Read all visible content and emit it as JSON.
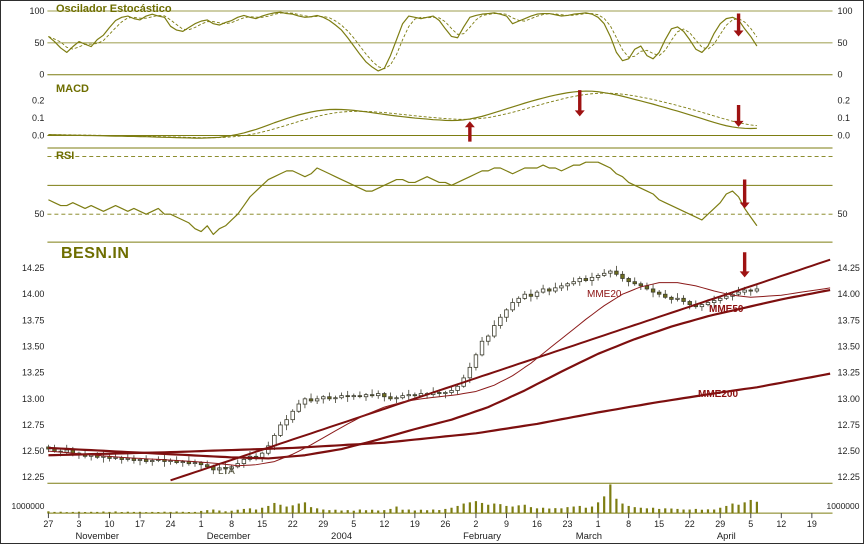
{
  "colors": {
    "olive": "#7d7d12",
    "olive_text": "#6e6e00",
    "dark_red": "#7d0f0f",
    "mme20_red": "#8b1a1a",
    "arrow_red": "#9e1212",
    "candle_up_fill": "#ffffff",
    "candle_down_fill": "#6e6e1e",
    "candle_stroke": "#3d3d2e",
    "volume": "#7d7d12",
    "axis_text": "#222222"
  },
  "chart_data": {
    "type": "candlestick",
    "title": "BESN.IN",
    "panels": {
      "stochastic": {
        "title": "Oscilador Estocástico",
        "ylim": [
          0,
          100
        ],
        "ytick_labels": [
          "100",
          "50",
          "0"
        ],
        "ytick_values": [
          100,
          50,
          0
        ],
        "ref_lines": [
          100,
          50,
          0
        ],
        "k": [
          60,
          52,
          42,
          35,
          44,
          52,
          48,
          44,
          55,
          62,
          74,
          85,
          90,
          92,
          88,
          86,
          92,
          95,
          92,
          90,
          76,
          70,
          68,
          74,
          80,
          84,
          86,
          80,
          78,
          82,
          85,
          90,
          93,
          90,
          88,
          92,
          95,
          97,
          98,
          96,
          95,
          92,
          90,
          91,
          93,
          90,
          85,
          78,
          70,
          58,
          45,
          32,
          20,
          12,
          6,
          10,
          30,
          55,
          80,
          92,
          90,
          88,
          90,
          92,
          85,
          72,
          60,
          58,
          75,
          90,
          93,
          95,
          96,
          97,
          95,
          92,
          80,
          84,
          88,
          92,
          95,
          96,
          96,
          94,
          92,
          93,
          95,
          96,
          97,
          95,
          90,
          80,
          60,
          35,
          22,
          25,
          40,
          45,
          30,
          25,
          35,
          55,
          72,
          75,
          68,
          55,
          40,
          35,
          45,
          65,
          80,
          88,
          90,
          86,
          72,
          60,
          45
        ]
      },
      "macd": {
        "title": "MACD",
        "ylim": [
          -0.06,
          0.33
        ],
        "ytick_labels": [
          "0.2",
          "0.1",
          "0.0"
        ],
        "ytick_values": [
          0.2,
          0.1,
          0.0
        ],
        "ref_lines": [
          0.0
        ],
        "values": [
          0.005,
          0.004,
          0.003,
          0.002,
          0.002,
          0.001,
          0.0,
          0.0,
          -0.001,
          -0.002,
          -0.003,
          -0.004,
          -0.004,
          -0.005,
          -0.005,
          -0.006,
          -0.007,
          -0.008,
          -0.009,
          -0.01,
          -0.011,
          -0.012,
          -0.013,
          -0.014,
          -0.015,
          -0.015,
          -0.014,
          -0.012,
          -0.01,
          -0.005,
          0.0,
          0.007,
          0.015,
          0.025,
          0.035,
          0.047,
          0.06,
          0.073,
          0.085,
          0.097,
          0.108,
          0.118,
          0.127,
          0.135,
          0.141,
          0.146,
          0.149,
          0.15,
          0.149,
          0.147,
          0.144,
          0.14,
          0.136,
          0.131,
          0.126,
          0.121,
          0.116,
          0.112,
          0.108,
          0.104,
          0.1,
          0.097,
          0.094,
          0.091,
          0.089,
          0.087,
          0.086,
          0.087,
          0.09,
          0.095,
          0.102,
          0.11,
          0.12,
          0.131,
          0.142,
          0.153,
          0.164,
          0.175,
          0.186,
          0.196,
          0.206,
          0.215,
          0.224,
          0.232,
          0.239,
          0.245,
          0.25,
          0.253,
          0.255,
          0.254,
          0.251,
          0.246,
          0.24,
          0.233,
          0.225,
          0.216,
          0.207,
          0.198,
          0.189,
          0.18,
          0.17,
          0.16,
          0.15,
          0.14,
          0.13,
          0.119,
          0.108,
          0.097,
          0.086,
          0.075,
          0.065,
          0.056,
          0.049,
          0.044,
          0.041,
          0.04,
          0.041
        ]
      },
      "rsi": {
        "title": "RSI",
        "ytick_labels": [
          "50"
        ],
        "ytick_values": [
          50
        ],
        "ref_lines_solid": [
          60
        ],
        "ref_lines_dashed": [
          70,
          50
        ],
        "values": [
          55,
          54,
          53,
          53,
          54,
          53,
          52,
          53,
          52,
          51,
          52,
          53,
          52,
          51,
          52,
          51,
          50,
          51,
          52,
          50,
          50,
          49,
          48,
          47,
          45,
          44,
          46,
          43,
          45,
          46,
          48,
          50,
          53,
          56,
          58,
          60,
          62,
          63,
          64,
          65,
          65,
          64,
          63,
          64,
          66,
          65,
          64,
          63,
          62,
          61,
          60,
          59,
          58,
          58,
          59,
          60,
          61,
          62,
          62,
          61,
          61,
          62,
          63,
          62,
          61,
          61,
          60,
          61,
          62,
          63,
          64,
          65,
          65,
          66,
          66,
          65,
          64,
          65,
          66,
          66,
          66,
          67,
          66,
          66,
          65,
          66,
          67,
          67,
          68,
          68,
          68,
          67,
          66,
          64,
          63,
          61,
          60,
          59,
          58,
          57,
          55,
          54,
          53,
          52,
          51,
          50,
          49,
          48,
          50,
          52,
          54,
          57,
          58,
          56,
          52,
          49,
          46
        ]
      },
      "price": {
        "yticks": [
          "14.25",
          "14.00",
          "13.75",
          "13.50",
          "13.25",
          "13.00",
          "12.75",
          "12.50",
          "12.25"
        ],
        "close": [
          12.52,
          12.5,
          12.49,
          12.51,
          12.48,
          12.47,
          12.45,
          12.46,
          12.44,
          12.45,
          12.43,
          12.44,
          12.42,
          12.43,
          12.41,
          12.42,
          12.4,
          12.41,
          12.42,
          12.4,
          12.41,
          12.39,
          12.4,
          12.38,
          12.39,
          12.37,
          12.35,
          12.32,
          12.34,
          12.33,
          12.35,
          12.38,
          12.42,
          12.45,
          12.44,
          12.48,
          12.55,
          12.65,
          12.75,
          12.8,
          12.88,
          12.95,
          13.0,
          12.98,
          13.0,
          13.02,
          13.0,
          13.01,
          13.03,
          13.02,
          13.03,
          13.02,
          13.04,
          13.03,
          13.05,
          13.02,
          13.0,
          13.01,
          13.03,
          13.04,
          13.03,
          13.05,
          13.04,
          13.06,
          13.05,
          13.06,
          13.08,
          13.12,
          13.2,
          13.3,
          13.42,
          13.55,
          13.6,
          13.7,
          13.78,
          13.85,
          13.92,
          13.96,
          14.0,
          13.98,
          14.02,
          14.05,
          14.03,
          14.06,
          14.08,
          14.1,
          14.12,
          14.15,
          14.13,
          14.16,
          14.18,
          14.2,
          14.22,
          14.19,
          14.15,
          14.12,
          14.1,
          14.08,
          14.05,
          14.02,
          14.0,
          13.97,
          13.95,
          13.96,
          13.93,
          13.9,
          13.88,
          13.9,
          13.92,
          13.94,
          13.96,
          13.98,
          14.0,
          14.02,
          14.04,
          14.03,
          14.05
        ],
        "wick_pattern": [
          0.02,
          0.04,
          0.015,
          0.05,
          0.03,
          0.015,
          0.04,
          0.02,
          0.03,
          0.045
        ],
        "ma": {
          "mme20": {
            "label": "MME20",
            "anchors": [
              [
                0,
                12.5
              ],
              [
                6,
                12.47
              ],
              [
                12,
                12.44
              ],
              [
                18,
                12.42
              ],
              [
                24,
                12.4
              ],
              [
                28,
                12.38
              ],
              [
                31,
                12.36
              ],
              [
                34,
                12.37
              ],
              [
                37,
                12.4
              ],
              [
                40,
                12.47
              ],
              [
                43,
                12.56
              ],
              [
                46,
                12.66
              ],
              [
                49,
                12.76
              ],
              [
                52,
                12.85
              ],
              [
                55,
                12.92
              ],
              [
                58,
                12.97
              ],
              [
                61,
                13.0
              ],
              [
                64,
                13.02
              ],
              [
                67,
                13.04
              ],
              [
                70,
                13.07
              ],
              [
                73,
                13.13
              ],
              [
                76,
                13.22
              ],
              [
                79,
                13.34
              ],
              [
                82,
                13.48
              ],
              [
                85,
                13.62
              ],
              [
                88,
                13.76
              ],
              [
                91,
                13.89
              ],
              [
                94,
                14.0
              ],
              [
                97,
                14.07
              ],
              [
                100,
                14.11
              ],
              [
                103,
                14.11
              ],
              [
                106,
                14.08
              ],
              [
                109,
                14.03
              ],
              [
                112,
                13.99
              ],
              [
                115,
                13.97
              ],
              [
                120,
                13.99
              ],
              [
                128,
                14.06
              ]
            ]
          },
          "mme50": {
            "label": "MME50",
            "anchors": [
              [
                0,
                12.53
              ],
              [
                10,
                12.5
              ],
              [
                20,
                12.47
              ],
              [
                30,
                12.44
              ],
              [
                36,
                12.43
              ],
              [
                42,
                12.46
              ],
              [
                48,
                12.52
              ],
              [
                54,
                12.61
              ],
              [
                60,
                12.71
              ],
              [
                66,
                12.8
              ],
              [
                72,
                12.92
              ],
              [
                78,
                13.08
              ],
              [
                84,
                13.26
              ],
              [
                90,
                13.43
              ],
              [
                96,
                13.57
              ],
              [
                102,
                13.69
              ],
              [
                108,
                13.79
              ],
              [
                114,
                13.87
              ],
              [
                120,
                13.95
              ],
              [
                128,
                14.04
              ]
            ]
          },
          "mme200": {
            "label": "MME200",
            "anchors": [
              [
                0,
                12.46
              ],
              [
                20,
                12.49
              ],
              [
                40,
                12.53
              ],
              [
                55,
                12.58
              ],
              [
                70,
                12.67
              ],
              [
                80,
                12.76
              ],
              [
                90,
                12.87
              ],
              [
                100,
                12.97
              ],
              [
                110,
                13.06
              ],
              [
                116,
                13.11
              ],
              [
                128,
                13.24
              ]
            ]
          },
          "lta": {
            "label": "LTA",
            "anchors": [
              [
                20,
                12.22
              ],
              [
                128,
                14.33
              ]
            ]
          }
        }
      },
      "volume": {
        "ytick_label": "1000000",
        "ytick_value": 1.0,
        "values": [
          0.15,
          0.1,
          0.12,
          0.08,
          0.1,
          0.12,
          0.09,
          0.11,
          0.1,
          0.13,
          0.1,
          0.14,
          0.09,
          0.12,
          0.1,
          0.11,
          0.08,
          0.1,
          0.09,
          0.12,
          0.1,
          0.13,
          0.11,
          0.09,
          0.1,
          0.18,
          0.25,
          0.3,
          0.22,
          0.15,
          0.2,
          0.28,
          0.35,
          0.4,
          0.3,
          0.45,
          0.6,
          0.85,
          0.7,
          0.55,
          0.65,
          0.8,
          0.9,
          0.5,
          0.4,
          0.3,
          0.25,
          0.28,
          0.22,
          0.25,
          0.2,
          0.3,
          0.24,
          0.28,
          0.22,
          0.25,
          0.35,
          0.55,
          0.28,
          0.3,
          0.22,
          0.28,
          0.24,
          0.3,
          0.26,
          0.35,
          0.45,
          0.6,
          0.8,
          0.9,
          1.0,
          0.85,
          0.7,
          0.8,
          0.75,
          0.6,
          0.55,
          0.65,
          0.7,
          0.5,
          0.4,
          0.45,
          0.38,
          0.42,
          0.4,
          0.5,
          0.55,
          0.6,
          0.45,
          0.55,
          0.9,
          1.4,
          2.4,
          1.2,
          0.8,
          0.6,
          0.5,
          0.45,
          0.4,
          0.45,
          0.35,
          0.4,
          0.38,
          0.35,
          0.3,
          0.3,
          0.35,
          0.28,
          0.32,
          0.3,
          0.45,
          0.6,
          0.8,
          0.7,
          0.9,
          1.1,
          0.95
        ]
      }
    },
    "x_axis": {
      "week_labels": [
        "27",
        "3",
        "10",
        "17",
        "24",
        "1",
        "8",
        "15",
        "22",
        "29",
        "5",
        "12",
        "19",
        "26",
        "2",
        "9",
        "16",
        "23",
        "1",
        "8",
        "15",
        "22",
        "29",
        "5",
        "12",
        "19"
      ],
      "months": [
        {
          "label": "November",
          "week": 1.6
        },
        {
          "label": "December",
          "week": 5.9
        },
        {
          "label": "2004",
          "week": 9.6
        },
        {
          "label": "February",
          "week": 14.2
        },
        {
          "label": "March",
          "week": 17.7
        },
        {
          "label": "April",
          "week": 22.2
        }
      ]
    },
    "arrows": [
      {
        "panel": "stochastic",
        "day": 113,
        "from": 96,
        "to": 60,
        "dir": "down"
      },
      {
        "panel": "macd",
        "day": 69,
        "from": -0.035,
        "to": 0.082,
        "dir": "up"
      },
      {
        "panel": "macd",
        "day": 87,
        "from": 0.26,
        "to": 0.11,
        "dir": "down"
      },
      {
        "panel": "macd",
        "day": 113,
        "from": 0.175,
        "to": 0.05,
        "dir": "down"
      },
      {
        "panel": "rsi",
        "day": 114,
        "from": 62,
        "to": 52,
        "dir": "down"
      },
      {
        "panel": "price",
        "day": 114,
        "from": 14.4,
        "to": 14.16,
        "dir": "down"
      }
    ]
  }
}
